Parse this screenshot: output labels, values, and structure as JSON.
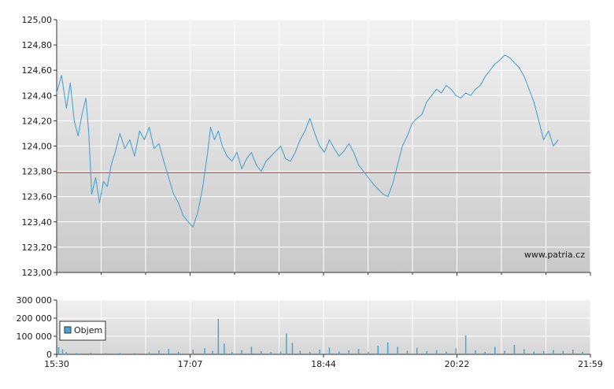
{
  "watermark": "www.patria.cz",
  "chart_data": [
    {
      "type": "line",
      "series": [
        {
          "values": [
            [
              0.0,
              124.42
            ],
            [
              0.05,
              124.56
            ],
            [
              0.1,
              124.3
            ],
            [
              0.14,
              124.5
            ],
            [
              0.18,
              124.2
            ],
            [
              0.22,
              124.08
            ],
            [
              0.26,
              124.25
            ],
            [
              0.3,
              124.38
            ],
            [
              0.33,
              124.1
            ],
            [
              0.36,
              123.62
            ],
            [
              0.4,
              123.75
            ],
            [
              0.44,
              123.55
            ],
            [
              0.48,
              123.72
            ],
            [
              0.52,
              123.68
            ],
            [
              0.56,
              123.85
            ],
            [
              0.6,
              123.95
            ],
            [
              0.65,
              124.1
            ],
            [
              0.7,
              123.98
            ],
            [
              0.75,
              124.05
            ],
            [
              0.8,
              123.92
            ],
            [
              0.85,
              124.12
            ],
            [
              0.9,
              124.05
            ],
            [
              0.95,
              124.15
            ],
            [
              1.0,
              123.98
            ],
            [
              1.05,
              124.02
            ],
            [
              1.1,
              123.88
            ],
            [
              1.15,
              123.75
            ],
            [
              1.2,
              123.62
            ],
            [
              1.25,
              123.55
            ],
            [
              1.3,
              123.45
            ],
            [
              1.35,
              123.4
            ],
            [
              1.4,
              123.36
            ],
            [
              1.45,
              123.48
            ],
            [
              1.5,
              123.68
            ],
            [
              1.55,
              123.95
            ],
            [
              1.58,
              124.15
            ],
            [
              1.62,
              124.05
            ],
            [
              1.66,
              124.12
            ],
            [
              1.7,
              124.0
            ],
            [
              1.75,
              123.92
            ],
            [
              1.8,
              123.88
            ],
            [
              1.85,
              123.95
            ],
            [
              1.9,
              123.82
            ],
            [
              1.95,
              123.9
            ],
            [
              2.0,
              123.95
            ],
            [
              2.05,
              123.85
            ],
            [
              2.1,
              123.8
            ],
            [
              2.15,
              123.88
            ],
            [
              2.2,
              123.92
            ],
            [
              2.25,
              123.96
            ],
            [
              2.3,
              124.0
            ],
            [
              2.35,
              123.9
            ],
            [
              2.4,
              123.88
            ],
            [
              2.45,
              123.95
            ],
            [
              2.5,
              124.05
            ],
            [
              2.55,
              124.12
            ],
            [
              2.6,
              124.22
            ],
            [
              2.65,
              124.1
            ],
            [
              2.7,
              124.0
            ],
            [
              2.75,
              123.95
            ],
            [
              2.8,
              124.05
            ],
            [
              2.85,
              123.98
            ],
            [
              2.9,
              123.92
            ],
            [
              2.95,
              123.96
            ],
            [
              3.0,
              124.02
            ],
            [
              3.05,
              123.95
            ],
            [
              3.1,
              123.85
            ],
            [
              3.15,
              123.8
            ],
            [
              3.2,
              123.75
            ],
            [
              3.25,
              123.7
            ],
            [
              3.3,
              123.66
            ],
            [
              3.35,
              123.62
            ],
            [
              3.4,
              123.6
            ],
            [
              3.45,
              123.7
            ],
            [
              3.5,
              123.85
            ],
            [
              3.55,
              124.0
            ],
            [
              3.6,
              124.08
            ],
            [
              3.65,
              124.18
            ],
            [
              3.7,
              124.22
            ],
            [
              3.75,
              124.25
            ],
            [
              3.8,
              124.35
            ],
            [
              3.85,
              124.4
            ],
            [
              3.9,
              124.45
            ],
            [
              3.95,
              124.42
            ],
            [
              4.0,
              124.48
            ],
            [
              4.05,
              124.45
            ],
            [
              4.1,
              124.4
            ],
            [
              4.15,
              124.38
            ],
            [
              4.2,
              124.42
            ],
            [
              4.25,
              124.4
            ],
            [
              4.3,
              124.45
            ],
            [
              4.35,
              124.48
            ],
            [
              4.4,
              124.55
            ],
            [
              4.45,
              124.6
            ],
            [
              4.5,
              124.65
            ],
            [
              4.55,
              124.68
            ],
            [
              4.6,
              124.72
            ],
            [
              4.65,
              124.7
            ],
            [
              4.7,
              124.66
            ],
            [
              4.75,
              124.62
            ],
            [
              4.8,
              124.55
            ],
            [
              4.85,
              124.45
            ],
            [
              4.9,
              124.35
            ],
            [
              4.95,
              124.2
            ],
            [
              5.0,
              124.05
            ],
            [
              5.05,
              124.12
            ],
            [
              5.1,
              124.0
            ],
            [
              5.15,
              124.05
            ]
          ]
        },
        {
          "values": [
            [
              0.0,
              123.79
            ],
            [
              5.48,
              123.79
            ]
          ]
        }
      ],
      "x_ticks": [
        "15:30",
        "17:07",
        "18:44",
        "20:22",
        "21:59"
      ],
      "y_ticks": [
        "123,00",
        "123,20",
        "123,40",
        "123,60",
        "123,80",
        "124,00",
        "124,20",
        "124,40",
        "124,60",
        "124,80",
        "125,00"
      ],
      "ylim": [
        123.0,
        125.0
      ],
      "grid": true,
      "colors": {
        "price": "#4aa3d1",
        "reference": "#cc3b2a"
      }
    },
    {
      "type": "bar",
      "series": [
        {
          "name": "Objem",
          "values": [
            [
              0.02,
              40000
            ],
            [
              0.06,
              28000
            ],
            [
              0.1,
              12000
            ],
            [
              0.2,
              6000
            ],
            [
              0.35,
              9000
            ],
            [
              0.5,
              7000
            ],
            [
              0.65,
              8000
            ],
            [
              0.8,
              6000
            ],
            [
              0.95,
              11000
            ],
            [
              1.05,
              22000
            ],
            [
              1.15,
              30000
            ],
            [
              1.25,
              14000
            ],
            [
              1.4,
              26000
            ],
            [
              1.52,
              34000
            ],
            [
              1.6,
              19000
            ],
            [
              1.66,
              195000
            ],
            [
              1.72,
              60000
            ],
            [
              1.8,
              12000
            ],
            [
              1.9,
              24000
            ],
            [
              2.0,
              42000
            ],
            [
              2.1,
              18000
            ],
            [
              2.2,
              12000
            ],
            [
              2.3,
              15000
            ],
            [
              2.36,
              115000
            ],
            [
              2.42,
              62000
            ],
            [
              2.5,
              20000
            ],
            [
              2.6,
              14000
            ],
            [
              2.7,
              26000
            ],
            [
              2.8,
              38000
            ],
            [
              2.9,
              16000
            ],
            [
              3.0,
              22000
            ],
            [
              3.1,
              30000
            ],
            [
              3.2,
              14000
            ],
            [
              3.3,
              48000
            ],
            [
              3.4,
              66000
            ],
            [
              3.5,
              42000
            ],
            [
              3.6,
              20000
            ],
            [
              3.7,
              36000
            ],
            [
              3.8,
              18000
            ],
            [
              3.9,
              24000
            ],
            [
              4.0,
              15000
            ],
            [
              4.1,
              34000
            ],
            [
              4.2,
              105000
            ],
            [
              4.3,
              22000
            ],
            [
              4.4,
              14000
            ],
            [
              4.5,
              42000
            ],
            [
              4.6,
              20000
            ],
            [
              4.7,
              52000
            ],
            [
              4.8,
              28000
            ],
            [
              4.9,
              16000
            ],
            [
              5.0,
              18000
            ],
            [
              5.1,
              24000
            ],
            [
              5.2,
              20000
            ],
            [
              5.3,
              26000
            ],
            [
              5.4,
              14000
            ]
          ]
        }
      ],
      "x_ticks": [
        "15:30",
        "17:07",
        "18:44",
        "20:22",
        "21:59"
      ],
      "y_ticks": [
        "0",
        "100 000",
        "200 000",
        "300 000"
      ],
      "ylim": [
        0,
        300000
      ],
      "legend": "left",
      "grid": true,
      "colors": {
        "bars": "#4aa3d1"
      }
    }
  ]
}
